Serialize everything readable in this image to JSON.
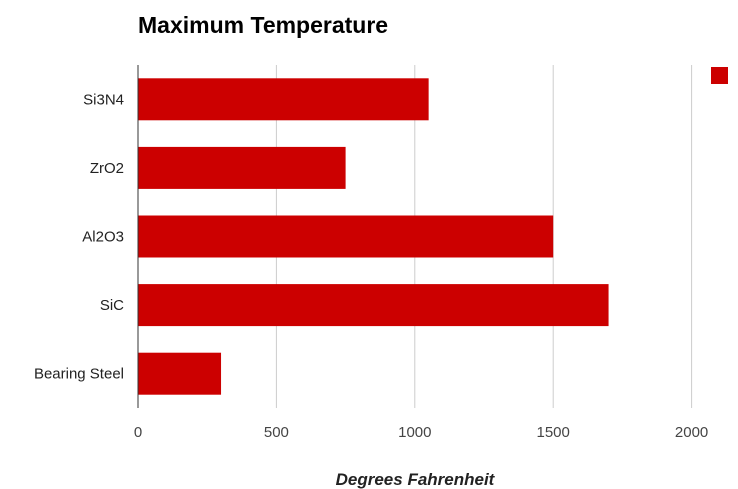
{
  "chart_data": {
    "type": "bar",
    "orientation": "horizontal",
    "title": "Maximum Temperature",
    "xlabel": "Degrees Fahrenheit",
    "ylabel": "",
    "categories": [
      "Si3N4",
      "ZrO2",
      "Al2O3",
      "SiC",
      "Bearing Steel"
    ],
    "series": [
      {
        "name": "",
        "values": [
          1050,
          750,
          1500,
          1700,
          300
        ]
      }
    ],
    "xlim": [
      0,
      2150
    ],
    "xticks": [
      "0",
      "500",
      "1000",
      "1500",
      "2000"
    ],
    "grid": true,
    "legend": "top-right",
    "colors": {
      "bar": "#cc0000",
      "grid": "#cccccc",
      "axis": "#333333"
    }
  }
}
